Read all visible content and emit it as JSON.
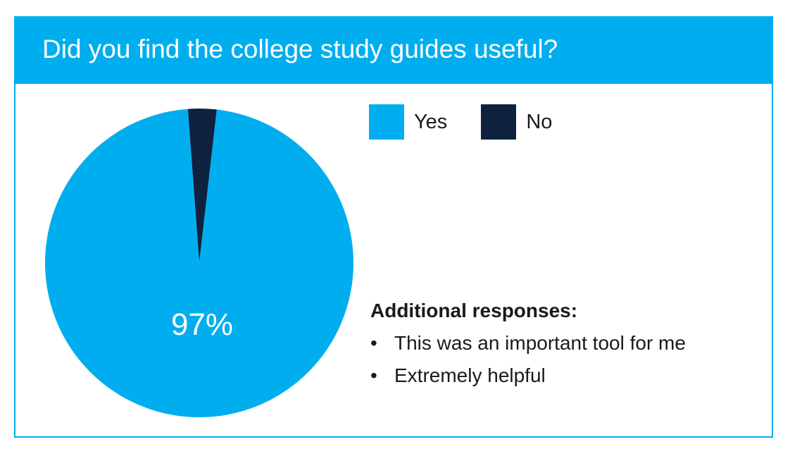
{
  "title": "Did you find the college study guides useful?",
  "colors": {
    "accent": "#00aeef",
    "yes": "#00aeef",
    "no": "#0e2240",
    "text": "#1a1a1a",
    "label": "#ffffff"
  },
  "chart_data": {
    "type": "pie",
    "title": "Did you find the college study guides useful?",
    "slices": [
      {
        "label": "Yes",
        "value": 97,
        "color": "#00aeef",
        "data_label": "97%"
      },
      {
        "label": "No",
        "value": 3,
        "color": "#0e2240",
        "data_label": ""
      }
    ],
    "legend": [
      "Yes",
      "No"
    ],
    "legend_position": "top-right"
  },
  "legend": {
    "yes_label": "Yes",
    "no_label": "No"
  },
  "responses": {
    "heading": "Additional responses:",
    "bullet": "•",
    "items": [
      "This was an important tool for me",
      "Extremely helpful"
    ]
  }
}
